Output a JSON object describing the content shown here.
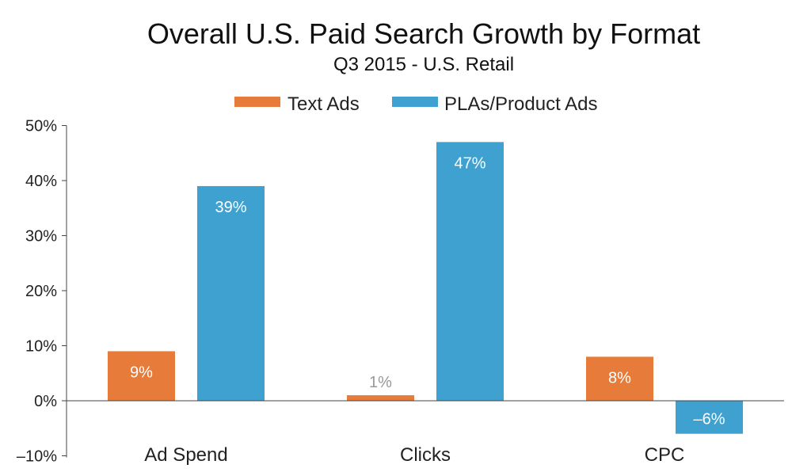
{
  "chart_data": {
    "type": "bar",
    "title": "Overall U.S. Paid Search Growth by Format",
    "subtitle": "Q3 2015 - U.S. Retail",
    "categories": [
      "Ad Spend",
      "Clicks",
      "CPC"
    ],
    "series": [
      {
        "name": "Text Ads",
        "values": [
          9,
          1,
          8
        ],
        "labels": [
          "9%",
          "1%",
          "8%"
        ],
        "color": "#E77C3A"
      },
      {
        "name": "PLAs/Product Ads",
        "values": [
          39,
          47,
          -6
        ],
        "labels": [
          "39%",
          "47%",
          "–6%"
        ],
        "color": "#3EA1CF"
      }
    ],
    "ylim": [
      -10,
      50
    ],
    "yticks": [
      -10,
      0,
      10,
      20,
      30,
      40,
      50
    ],
    "ytick_labels": [
      "–10%",
      "0%",
      "10%",
      "20%",
      "30%",
      "40%",
      "50%"
    ],
    "xlabel": "",
    "ylabel": "",
    "grid": false,
    "legend": "top-center",
    "label_color_inside": "#FFFFFF",
    "label_color_outside": "#999999"
  }
}
